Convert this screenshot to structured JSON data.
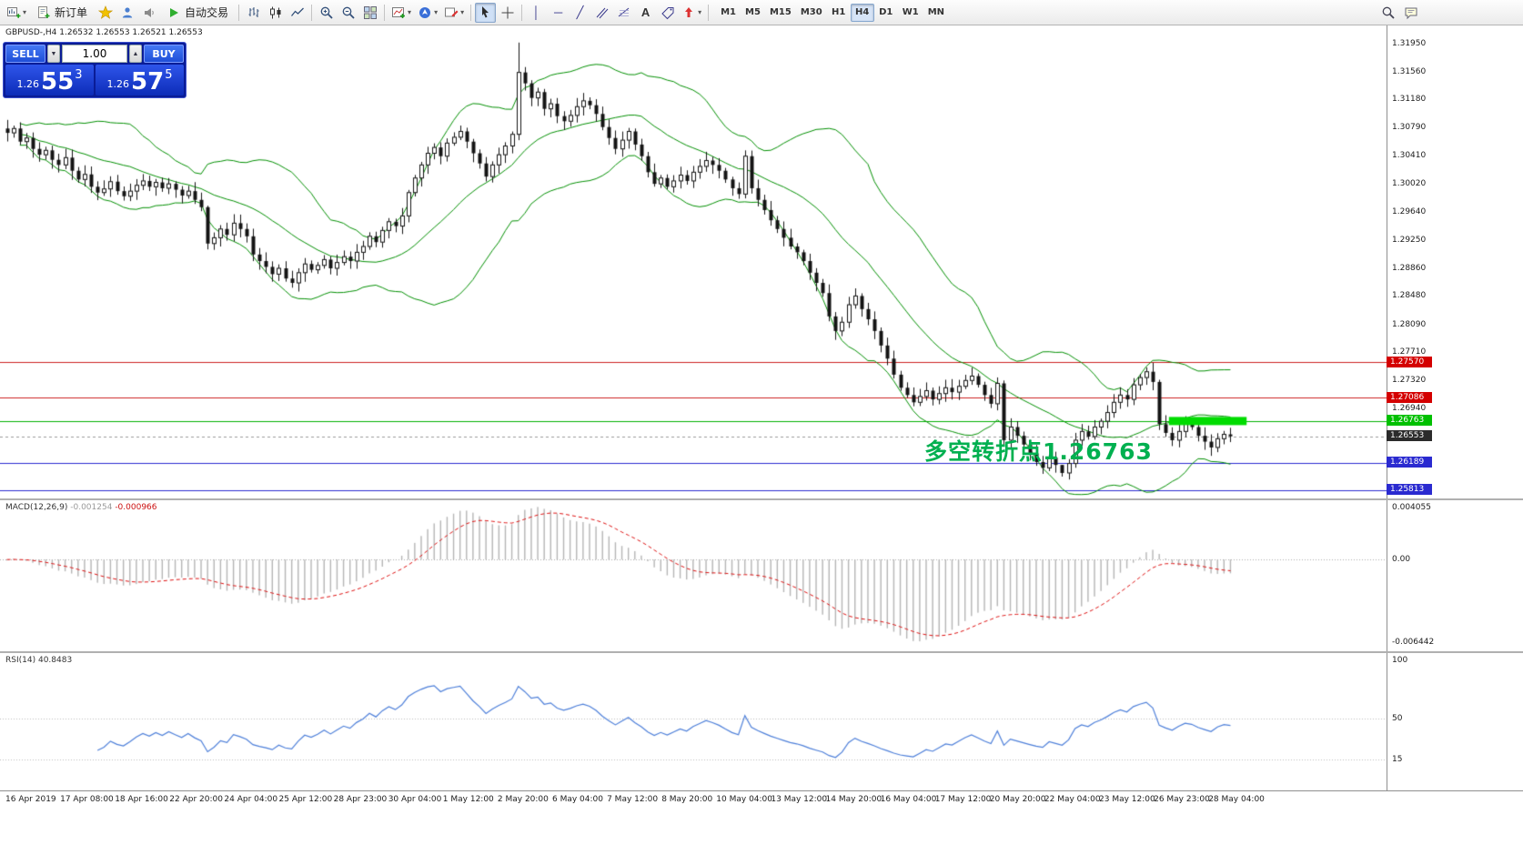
{
  "toolbar": {
    "new_order_label": "新订单",
    "auto_trading_label": "自动交易",
    "timeframes": [
      "M1",
      "M5",
      "M15",
      "M30",
      "H1",
      "H4",
      "D1",
      "W1",
      "MN"
    ],
    "active_timeframe": "H4"
  },
  "quote_panel": {
    "sell_label": "SELL",
    "buy_label": "BUY",
    "volume": "1.00",
    "sell_price": {
      "base": "1.26",
      "big": "55",
      "pip": "3"
    },
    "buy_price": {
      "base": "1.26",
      "big": "57",
      "pip": "5"
    }
  },
  "chart_header": {
    "text": "GBPUSD-,H4  1.26532 1.26553 1.26521 1.26553"
  },
  "annotation": {
    "text": "多空转折点1.26763",
    "color": "#00b050"
  },
  "price_axis": {
    "labels": [
      "1.31950",
      "1.31560",
      "1.31180",
      "1.30790",
      "1.30410",
      "1.30020",
      "1.29640",
      "1.29250",
      "1.28860",
      "1.28480",
      "1.28090",
      "1.27710",
      "1.27320",
      "1.26940"
    ],
    "levels": [
      {
        "value": "1.27570",
        "bg": "#d40000"
      },
      {
        "value": "1.27086",
        "bg": "#d40000"
      },
      {
        "value": "1.26763",
        "bg": "#00c000"
      },
      {
        "value": "1.26553",
        "bg": "#2b2b2b"
      },
      {
        "value": "1.26189",
        "bg": "#2a2ad0"
      },
      {
        "value": "1.25813",
        "bg": "#2a2ad0"
      }
    ]
  },
  "macd_panel": {
    "title": "MACD(12,26,9)",
    "main_value": "-0.001254",
    "signal_value": "-0.000966",
    "scale": [
      "0.004055",
      "0.00",
      "-0.006442"
    ]
  },
  "rsi_panel": {
    "title": "RSI(14)",
    "value": "40.8483",
    "scale": [
      "100",
      "50",
      "15"
    ]
  },
  "chart_data": {
    "type": "candlestick",
    "symbol": "GBPUSD",
    "timeframe": "H4",
    "y_range": [
      1.257,
      1.32195
    ],
    "x_labels": [
      "16 Apr 2019",
      "17 Apr 08:00",
      "18 Apr 16:00",
      "22 Apr 20:00",
      "24 Apr 04:00",
      "25 Apr 12:00",
      "28 Apr 23:00",
      "30 Apr 04:00",
      "1 May 12:00",
      "2 May 20:00",
      "6 May 04:00",
      "7 May 12:00",
      "8 May 20:00",
      "10 May 04:00",
      "13 May 12:00",
      "14 May 20:00",
      "16 May 04:00",
      "17 May 12:00",
      "20 May 20:00",
      "22 May 04:00",
      "23 May 12:00",
      "26 May 23:00",
      "28 May 04:00"
    ],
    "closes": [
      1.3072,
      1.3078,
      1.306,
      1.3065,
      1.305,
      1.3042,
      1.3048,
      1.3035,
      1.3028,
      1.3038,
      1.302,
      1.3008,
      1.3015,
      1.2998,
      1.299,
      1.2995,
      1.3005,
      1.2992,
      1.2985,
      1.2992,
      1.3,
      1.3006,
      1.2998,
      1.3004,
      1.2996,
      1.3002,
      1.2994,
      1.2986,
      1.2992,
      1.298,
      1.297,
      1.292,
      1.2928,
      1.294,
      1.2932,
      1.2948,
      1.294,
      1.293,
      1.2905,
      1.2896,
      1.2888,
      1.2878,
      1.2886,
      1.2872,
      1.2866,
      1.288,
      1.2892,
      1.2884,
      1.289,
      1.2898,
      1.2886,
      1.2894,
      1.2902,
      1.2896,
      1.2908,
      1.2916,
      1.293,
      1.2922,
      1.2938,
      1.295,
      1.2944,
      1.2958,
      1.299,
      1.301,
      1.3028,
      1.3044,
      1.3052,
      1.304,
      1.3058,
      1.3066,
      1.3074,
      1.306,
      1.3044,
      1.303,
      1.3012,
      1.3028,
      1.3042,
      1.3054,
      1.307,
      1.3155,
      1.314,
      1.312,
      1.3128,
      1.3105,
      1.3112,
      1.3095,
      1.3088,
      1.3096,
      1.3108,
      1.3116,
      1.311,
      1.3098,
      1.308,
      1.3065,
      1.305,
      1.3062,
      1.3074,
      1.3056,
      1.304,
      1.3018,
      1.3002,
      1.301,
      1.2998,
      1.3006,
      1.3014,
      1.3006,
      1.3018,
      1.3026,
      1.3034,
      1.3028,
      1.302,
      1.3008,
      1.2996,
      1.2988,
      1.304,
      1.2996,
      1.298,
      1.2966,
      1.2952,
      1.294,
      1.2928,
      1.2916,
      1.2908,
      1.2896,
      1.288,
      1.2866,
      1.2852,
      1.282,
      1.28,
      1.2812,
      1.2836,
      1.2848,
      1.283,
      1.2816,
      1.28,
      1.278,
      1.2762,
      1.274,
      1.2722,
      1.2712,
      1.2702,
      1.271,
      1.2718,
      1.2706,
      1.2714,
      1.2722,
      1.2716,
      1.2724,
      1.2732,
      1.2738,
      1.2726,
      1.2712,
      1.27,
      1.2728,
      1.265,
      1.2668,
      1.2656,
      1.2644,
      1.2632,
      1.262,
      1.2612,
      1.2626,
      1.2616,
      1.2605,
      1.2618,
      1.265,
      1.2662,
      1.2655,
      1.2668,
      1.2676,
      1.2688,
      1.2702,
      1.2712,
      1.2706,
      1.2726,
      1.2736,
      1.2744,
      1.273,
      1.2672,
      1.266,
      1.265,
      1.2662,
      1.2672,
      1.2668,
      1.2656,
      1.2648,
      1.264,
      1.2652,
      1.2658,
      1.26553
    ],
    "wick_overrides": {
      "31": [
        1.2972,
        1.2912
      ],
      "79": [
        1.3196,
        1.3062
      ],
      "114": [
        1.3048,
        1.2982
      ],
      "154": [
        1.2732,
        1.2643
      ],
      "163": [
        1.2616,
        1.26
      ],
      "164": [
        1.2624,
        1.2596
      ],
      "176": [
        1.275,
        1.2726
      ],
      "178": [
        1.2733,
        1.2664
      ]
    },
    "hlines": [
      {
        "price": 1.2757,
        "color": "#cc2020"
      },
      {
        "price": 1.27086,
        "color": "#cc2020"
      },
      {
        "price": 1.26763,
        "color": "#00b000"
      },
      {
        "price": 1.26189,
        "color": "#2a2ad0"
      },
      {
        "price": 1.25813,
        "color": "#2a2ad0"
      }
    ],
    "bid_line": {
      "price": 1.26553,
      "color": "#9a9a9a"
    },
    "highlight": {
      "from_bar": 180,
      "to_bar": 192,
      "price": 1.26763,
      "color": "#00dc00",
      "thickness": 9
    },
    "theme": {
      "candle_up_fill": "#ffffff",
      "candle_down_fill": "#141414",
      "candle_stroke": "#141414",
      "bollinger": "#008f00",
      "macd_histogram": "#b5b5b5",
      "macd_signal": "#dd1111",
      "rsi_line": "#4d7fd9"
    },
    "indicators": {
      "bollinger": {
        "period": 20,
        "deviation": 2
      },
      "macd": {
        "fast": 12,
        "slow": 26,
        "signal": 9,
        "current_main": -0.001254,
        "current_signal": -0.000966,
        "scale_max": 0.004055,
        "scale_min": -0.006442
      },
      "rsi": {
        "period": 14,
        "current": 40.8483,
        "levels": [
          50,
          15
        ]
      }
    }
  }
}
